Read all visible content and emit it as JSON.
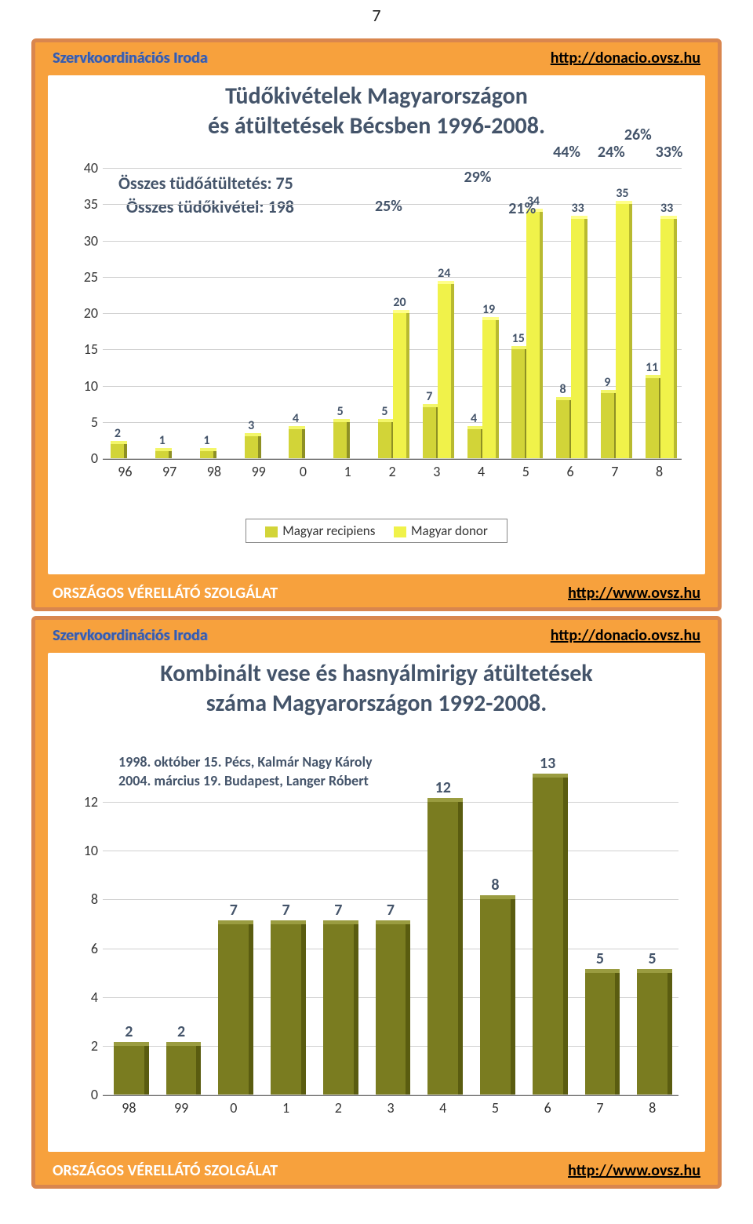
{
  "page_number": "7",
  "common": {
    "header_left": "Szervkoordinációs Iroda",
    "header_right_text": "http://donacio.ovsz.hu",
    "footer_left": "ORSZÁGOS VÉRELLÁTÓ SZOLGÁLAT",
    "footer_right_text": "http://www.ovsz.hu",
    "colors": {
      "frame_border": "#d9864e",
      "frame_bg": "#f7a13d",
      "white": "#ffffff",
      "blue_link": "#395aa8",
      "title_text": "#44546a",
      "grid": "#d0d0d0"
    }
  },
  "chart1": {
    "type": "grouped-bar-3d",
    "title1": "Tüdőkivételek Magyarországon",
    "title2": "és átültetések Bécsben 1996-2008.",
    "subtitle1": "Összes tüdőátültetés: 75",
    "subtitle2": "Összes tüdőkivétel: 198",
    "title_fontsize": 30,
    "label_fontsize": 18,
    "value_fontsize": 16,
    "ymax": 40,
    "ytick_step": 5,
    "yticks": [
      0,
      5,
      10,
      15,
      20,
      25,
      30,
      35,
      40
    ],
    "categories": [
      "96",
      "97",
      "98",
      "99",
      "0",
      "1",
      "2",
      "3",
      "4",
      "5",
      "6",
      "7",
      "8"
    ],
    "series": [
      {
        "name": "Magyar recipiens",
        "color_face": "#d2d438",
        "color_side": "#8e9024",
        "color_top": "#f3f66a",
        "values": [
          2,
          1,
          1,
          3,
          4,
          5,
          5,
          7,
          4,
          15,
          8,
          9,
          11
        ]
      },
      {
        "name": "Magyar donor",
        "color_face": "#f0f24a",
        "color_side": "#b8ba30",
        "color_top": "#ffff8a",
        "values": [
          null,
          null,
          null,
          null,
          null,
          null,
          20,
          24,
          19,
          34,
          33,
          35,
          33
        ]
      }
    ],
    "pct_labels": [
      {
        "text": "25%",
        "cat_idx": 6
      },
      {
        "text": "29%",
        "cat_idx": 8
      },
      {
        "text": "21%",
        "cat_idx": 9
      },
      {
        "text": "44%",
        "cat_idx": 10
      },
      {
        "text": "24%",
        "cat_idx": 11
      },
      {
        "text": "26%",
        "cat_idx": 11.6
      },
      {
        "text": "33%",
        "cat_idx": 12.3
      }
    ],
    "legend_items": [
      "Magyar recipiens",
      "Magyar donor"
    ]
  },
  "chart2": {
    "type": "bar-3d",
    "title1": "Kombinált vese és hasnyálmirigy átültetések",
    "title2": "száma Magyarországon 1992-2008.",
    "title_fontsize": 30,
    "note1": "1998. október 15. Pécs, Kalmár Nagy Károly",
    "note2": "2004. március 19. Budapest, Langer Róbert",
    "ymax": 14,
    "ytick_step": 2,
    "yticks": [
      0,
      2,
      4,
      6,
      8,
      10,
      12
    ],
    "categories": [
      "98",
      "99",
      "0",
      "1",
      "2",
      "3",
      "4",
      "5",
      "6",
      "7",
      "8"
    ],
    "bar_color_face": "#7a7c20",
    "bar_color_side": "#5a5c10",
    "bar_color_top": "#9a9c40",
    "values": [
      2,
      2,
      7,
      7,
      7,
      7,
      12,
      8,
      13,
      5,
      5
    ],
    "label_fontsize": 18,
    "value_fontsize": 18
  }
}
